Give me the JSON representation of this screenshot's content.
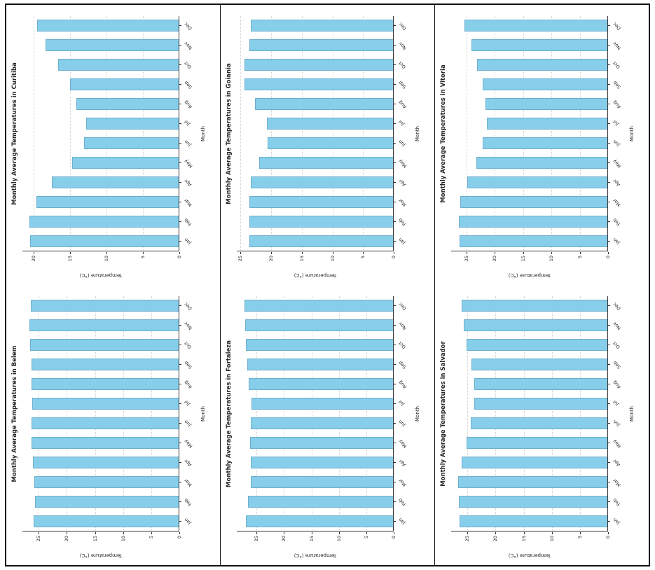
{
  "page": {
    "background": "#ffffff",
    "border_color": "#111111"
  },
  "colors": {
    "bar_fill": "#87CEEB",
    "bar_edge": "#5a96b4",
    "grid": "#d8d8d8",
    "axis": "#333333",
    "text": "#262626"
  },
  "chart_data": [
    {
      "type": "bar",
      "title": "Monthly Average Temperatures in Curitiba",
      "xlabel": "Month",
      "ylabel": "Temperature (°C)",
      "categories": [
        "Jan",
        "Feb",
        "Mar",
        "Apr",
        "May",
        "Jun",
        "Jul",
        "Aug",
        "Sep",
        "Oct",
        "Nov",
        "Dec"
      ],
      "values": [
        20.4,
        20.5,
        19.6,
        17.5,
        14.7,
        13.1,
        12.8,
        14.1,
        15.0,
        16.6,
        18.3,
        19.5
      ],
      "ylim": [
        0,
        21.5
      ],
      "yticks": [
        0,
        5,
        10,
        15,
        20
      ],
      "grid": "horizontal-dashed",
      "legend": "none"
    },
    {
      "type": "bar",
      "title": "Monthly Average Temperatures in Goiania",
      "xlabel": "Month",
      "ylabel": "Temperature (°C)",
      "categories": [
        "Jan",
        "Feb",
        "Mar",
        "Apr",
        "May",
        "Jun",
        "Jul",
        "Aug",
        "Sep",
        "Oct",
        "Nov",
        "Dec"
      ],
      "values": [
        23.5,
        23.6,
        23.5,
        23.3,
        21.9,
        20.6,
        20.7,
        22.6,
        24.3,
        24.4,
        23.5,
        23.3
      ],
      "ylim": [
        0,
        25.6
      ],
      "yticks": [
        0,
        5,
        10,
        15,
        20,
        25
      ],
      "grid": "horizontal-dashed",
      "legend": "none"
    },
    {
      "type": "bar",
      "title": "Monthly Average Temperatures in Vitoria",
      "xlabel": "Month",
      "ylabel": "Temperature (°C)",
      "categories": [
        "Jan",
        "Feb",
        "Mar",
        "Apr",
        "May",
        "Jun",
        "Jul",
        "Aug",
        "Sep",
        "Oct",
        "Nov",
        "Dec"
      ],
      "values": [
        26.2,
        26.4,
        26.1,
        24.8,
        23.3,
        22.1,
        21.4,
        21.7,
        22.1,
        23.1,
        24.1,
        25.3
      ],
      "ylim": [
        0,
        27.7
      ],
      "yticks": [
        0,
        5,
        10,
        15,
        20,
        25
      ],
      "grid": "horizontal-dashed",
      "legend": "none"
    },
    {
      "type": "bar",
      "title": "Monthly Average Temperatures in Belem",
      "xlabel": "Month",
      "ylabel": "Temperature (°C)",
      "categories": [
        "Jan",
        "Feb",
        "Mar",
        "Apr",
        "May",
        "Jun",
        "Jul",
        "Aug",
        "Sep",
        "Oct",
        "Nov",
        "Dec"
      ],
      "values": [
        25.9,
        25.7,
        25.8,
        26.0,
        26.3,
        26.3,
        26.1,
        26.3,
        26.3,
        26.5,
        26.6,
        26.4
      ],
      "ylim": [
        0,
        27.9
      ],
      "yticks": [
        0,
        5,
        10,
        15,
        20,
        25
      ],
      "grid": "horizontal-dashed",
      "legend": "none"
    },
    {
      "type": "bar",
      "title": "Monthly Average Temperatures in Fortaleza",
      "xlabel": "Month",
      "ylabel": "Temperature (°C)",
      "categories": [
        "Jan",
        "Feb",
        "Mar",
        "Apr",
        "May",
        "Jun",
        "Jul",
        "Aug",
        "Sep",
        "Oct",
        "Nov",
        "Dec"
      ],
      "values": [
        26.9,
        26.5,
        26.1,
        26.1,
        26.2,
        26.0,
        25.9,
        26.4,
        26.7,
        27.0,
        27.1,
        27.2
      ],
      "ylim": [
        0,
        28.6
      ],
      "yticks": [
        0,
        5,
        10,
        15,
        20,
        25
      ],
      "grid": "horizontal-dashed",
      "legend": "none"
    },
    {
      "type": "bar",
      "title": "Monthly Average Temperatures in Salvador",
      "xlabel": "Month",
      "ylabel": "Temperature (°C)",
      "categories": [
        "Jan",
        "Feb",
        "Mar",
        "Apr",
        "May",
        "Jun",
        "Jul",
        "Aug",
        "Sep",
        "Oct",
        "Nov",
        "Dec"
      ],
      "values": [
        26.4,
        26.5,
        26.6,
        26.0,
        25.2,
        24.4,
        23.8,
        23.8,
        24.3,
        25.1,
        25.6,
        26.0
      ],
      "ylim": [
        0,
        27.9
      ],
      "yticks": [
        0,
        5,
        10,
        15,
        20,
        25
      ],
      "grid": "horizontal-dashed",
      "legend": "none"
    }
  ],
  "layout_note": "Six bar charts on one document page; each chart is rotated 90 degrees counter-clockwise. Grid: columns left-to-right [Curitiba/Belem, Goiania/Fortaleza, Vitoria/Salvador]."
}
